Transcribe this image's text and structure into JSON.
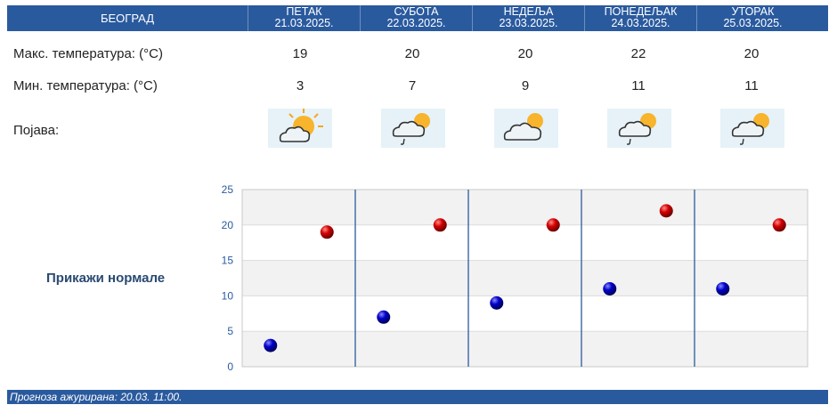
{
  "header": {
    "city": "БЕОГРАД",
    "days": [
      {
        "name": "ПЕТАК",
        "date": "21.03.2025."
      },
      {
        "name": "СУБОТА",
        "date": "22.03.2025."
      },
      {
        "name": "НЕДЕЉА",
        "date": "23.03.2025."
      },
      {
        "name": "ПОНЕДЕЉАК",
        "date": "24.03.2025."
      },
      {
        "name": "УТОРАК",
        "date": "25.03.2025."
      }
    ]
  },
  "rows": {
    "max_label": "Макс. температура: (°C)",
    "min_label": "Мин. температура: (°C)",
    "weather_label": "Појава:"
  },
  "max_temps": [
    "19",
    "20",
    "20",
    "22",
    "20"
  ],
  "min_temps": [
    "3",
    "7",
    "9",
    "11",
    "11"
  ],
  "icons": [
    "sun-cloud-icon",
    "cloud-sun-drizzle-icon",
    "cloud-sun-icon",
    "cloud-sun-drizzle-icon",
    "cloud-sun-drizzle-icon"
  ],
  "normals_link": "Прикажи нормале",
  "footer": "Прогноза ажурирана:  20.03. 11:00.",
  "colors": {
    "header_bg": "#2a5a9e",
    "max_dot": "#cc0000",
    "min_dot": "#0000aa"
  },
  "chart_data": {
    "type": "scatter",
    "categories": [
      "ПЕТАК",
      "СУБОТА",
      "НЕДЕЉА",
      "ПОНЕДЕЉАК",
      "УТОРАК"
    ],
    "series": [
      {
        "values": [
          3,
          7,
          9,
          11,
          11
        ],
        "color": "#0000aa"
      },
      {
        "values": [
          19,
          20,
          20,
          22,
          20
        ],
        "color": "#cc0000"
      }
    ],
    "ylim": [
      0,
      25
    ],
    "yticks": [
      0,
      5,
      10,
      15,
      20,
      25
    ],
    "grid": true
  }
}
